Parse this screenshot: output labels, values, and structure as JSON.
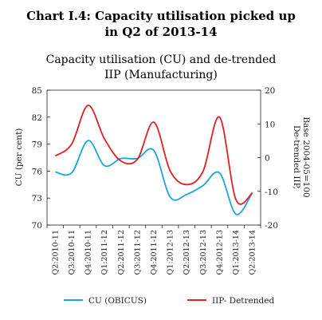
{
  "header": {
    "title_line1": "Chart I.4: Capacity utilisation picked up",
    "title_line2": "in Q2 of 2013-14"
  },
  "chart_data": {
    "type": "line",
    "title": "Capacity utilisation (CU) and de-trended IIP (Manufacturing)",
    "title_lines": [
      "Capacity utilisation (CU) and de-trended",
      "IIP (Manufacturing)"
    ],
    "categories": [
      "Q2:2010-11",
      "Q3:2010-11",
      "Q4:2010-11",
      "Q1:2011-12",
      "Q2:2011-12",
      "Q3:2011-12",
      "Q4:2011-12",
      "Q1:2012-13",
      "Q2:2012-13",
      "Q3:2012-13",
      "Q4:2012-13",
      "Q1:2013-14",
      "Q2:2013-14"
    ],
    "y_left": {
      "label": "CU (per cent)",
      "lim": [
        70,
        85
      ],
      "ticks": [
        70,
        73,
        76,
        79,
        82,
        85
      ]
    },
    "y_right": {
      "label_lines": [
        "De-trended IIP,",
        "Base 2004-05=100"
      ],
      "lim": [
        -20,
        20
      ],
      "ticks": [
        -20,
        -10,
        0,
        10,
        20
      ]
    },
    "series": [
      {
        "name": "CU (OBICUS)",
        "axis": "left",
        "color": "#1fa3de",
        "values": [
          75.9,
          75.8,
          79.4,
          76.6,
          77.4,
          77.4,
          78.3,
          73.1,
          73.4,
          74.4,
          75.8,
          71.2,
          73.6
        ]
      },
      {
        "name": "IIP- Detrended",
        "axis": "right",
        "color": "#e31e24",
        "values": [
          0.5,
          4.0,
          15.5,
          5.5,
          -1.0,
          -0.5,
          10.5,
          -4.0,
          -8.0,
          -4.0,
          12.0,
          -12.5,
          -10.5
        ]
      }
    ],
    "legend_position": "bottom",
    "grid": false
  }
}
